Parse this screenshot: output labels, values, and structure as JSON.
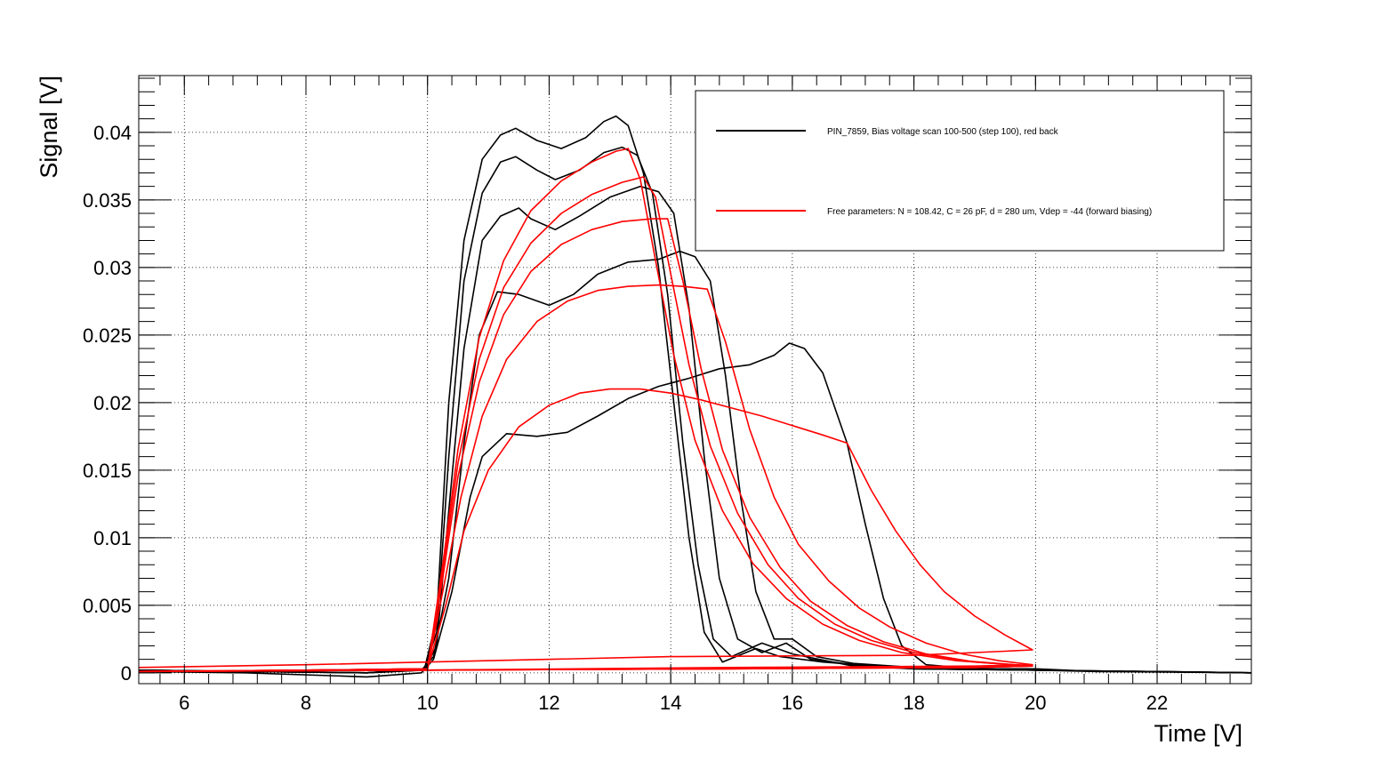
{
  "chart_data": {
    "type": "line",
    "title": "",
    "xlabel": "Time [V]",
    "ylabel": "Signal [V]",
    "xlim": [
      5.25,
      23.55
    ],
    "ylim": [
      -0.0008,
      0.0442
    ],
    "x_ticks": [
      6,
      8,
      10,
      12,
      14,
      16,
      18,
      20,
      22
    ],
    "y_ticks": [
      0,
      0.005,
      0.01,
      0.015,
      0.02,
      0.025,
      0.03,
      0.035,
      0.04
    ],
    "x_tick_labels": [
      "6",
      "8",
      "10",
      "12",
      "14",
      "16",
      "18",
      "20",
      "22"
    ],
    "y_tick_labels": [
      "0",
      "0.005",
      "0.01",
      "0.015",
      "0.02",
      "0.025",
      "0.03",
      "0.035",
      "0.04"
    ],
    "grid": true,
    "legend": {
      "placement": "top-right",
      "entries": [
        {
          "label": "PIN_7859, Bias voltage scan 100-500 (step 100), red back",
          "color": "#000000"
        },
        {
          "label": "Free parameters: N =  108.42, C = 26 pF, d = 280 um, Vdep = -44 (forward biasing)",
          "color": "#ff0000"
        }
      ]
    },
    "series": [
      {
        "group": "measured",
        "color": "#000000",
        "points": [
          [
            5.25,
            0.0001
          ],
          [
            7,
            0.0
          ],
          [
            9,
            -0.0003
          ],
          [
            9.9,
            0.0
          ],
          [
            10.1,
            0.001
          ],
          [
            10.4,
            0.006
          ],
          [
            10.7,
            0.013
          ],
          [
            10.9,
            0.016
          ],
          [
            11.3,
            0.0177
          ],
          [
            11.8,
            0.0175
          ],
          [
            12.3,
            0.0178
          ],
          [
            12.8,
            0.019
          ],
          [
            13.3,
            0.0203
          ],
          [
            13.8,
            0.0212
          ],
          [
            14.3,
            0.0218
          ],
          [
            14.8,
            0.0225
          ],
          [
            15.3,
            0.0228
          ],
          [
            15.7,
            0.0235
          ],
          [
            15.95,
            0.0244
          ],
          [
            16.2,
            0.024
          ],
          [
            16.5,
            0.0222
          ],
          [
            16.9,
            0.017
          ],
          [
            17.2,
            0.011
          ],
          [
            17.5,
            0.0055
          ],
          [
            17.8,
            0.002
          ],
          [
            18.2,
            0.0006
          ],
          [
            19,
            0.0003
          ],
          [
            20,
            0.0003
          ],
          [
            21,
            0.0001
          ],
          [
            22,
            0.0001
          ],
          [
            23.55,
            0.0
          ]
        ]
      },
      {
        "group": "measured",
        "color": "#000000",
        "points": [
          [
            5.25,
            0.0002
          ],
          [
            7,
            0.0001
          ],
          [
            9,
            0.0
          ],
          [
            9.9,
            0.0002
          ],
          [
            10.1,
            0.0012
          ],
          [
            10.35,
            0.007
          ],
          [
            10.6,
            0.017
          ],
          [
            10.85,
            0.025
          ],
          [
            11.15,
            0.0282
          ],
          [
            11.5,
            0.028
          ],
          [
            12.0,
            0.0272
          ],
          [
            12.4,
            0.028
          ],
          [
            12.8,
            0.0295
          ],
          [
            13.3,
            0.0304
          ],
          [
            13.8,
            0.0306
          ],
          [
            14.15,
            0.0312
          ],
          [
            14.4,
            0.0308
          ],
          [
            14.65,
            0.029
          ],
          [
            14.9,
            0.022
          ],
          [
            15.15,
            0.013
          ],
          [
            15.4,
            0.006
          ],
          [
            15.7,
            0.0025
          ],
          [
            16.0,
            0.0025
          ],
          [
            16.4,
            0.0012
          ],
          [
            17,
            0.0007
          ],
          [
            18,
            0.0004
          ],
          [
            19,
            0.0003
          ],
          [
            20,
            0.0002
          ],
          [
            21,
            0.0001
          ],
          [
            23.55,
            0.0
          ]
        ]
      },
      {
        "group": "measured",
        "color": "#000000",
        "points": [
          [
            5.25,
            0.0002
          ],
          [
            7,
            0.0001
          ],
          [
            9,
            0.0
          ],
          [
            9.95,
            0.0002
          ],
          [
            10.15,
            0.002
          ],
          [
            10.35,
            0.012
          ],
          [
            10.6,
            0.024
          ],
          [
            10.9,
            0.032
          ],
          [
            11.2,
            0.0338
          ],
          [
            11.5,
            0.0344
          ],
          [
            11.7,
            0.0336
          ],
          [
            12.1,
            0.0328
          ],
          [
            12.5,
            0.0338
          ],
          [
            13.0,
            0.0352
          ],
          [
            13.5,
            0.036
          ],
          [
            13.8,
            0.0356
          ],
          [
            14.05,
            0.034
          ],
          [
            14.3,
            0.027
          ],
          [
            14.55,
            0.016
          ],
          [
            14.8,
            0.007
          ],
          [
            15.1,
            0.0025
          ],
          [
            15.5,
            0.0015
          ],
          [
            15.9,
            0.0022
          ],
          [
            16.3,
            0.001
          ],
          [
            17,
            0.0006
          ],
          [
            18,
            0.0003
          ],
          [
            20,
            0.0002
          ],
          [
            23.55,
            0.0
          ]
        ]
      },
      {
        "group": "measured",
        "color": "#000000",
        "points": [
          [
            5.25,
            0.0002
          ],
          [
            7,
            0.0001
          ],
          [
            9,
            0.0
          ],
          [
            9.95,
            0.0003
          ],
          [
            10.15,
            0.003
          ],
          [
            10.35,
            0.016
          ],
          [
            10.6,
            0.029
          ],
          [
            10.9,
            0.0355
          ],
          [
            11.2,
            0.0378
          ],
          [
            11.45,
            0.0382
          ],
          [
            11.8,
            0.0372
          ],
          [
            12.1,
            0.0365
          ],
          [
            12.5,
            0.0372
          ],
          [
            12.9,
            0.0385
          ],
          [
            13.2,
            0.0389
          ],
          [
            13.45,
            0.0383
          ],
          [
            13.7,
            0.0355
          ],
          [
            13.95,
            0.028
          ],
          [
            14.2,
            0.017
          ],
          [
            14.45,
            0.008
          ],
          [
            14.7,
            0.0025
          ],
          [
            15.0,
            0.0012
          ],
          [
            15.5,
            0.0022
          ],
          [
            16.0,
            0.0014
          ],
          [
            17,
            0.0005
          ],
          [
            18,
            0.0003
          ],
          [
            20,
            0.0002
          ],
          [
            23.55,
            0.0
          ]
        ]
      },
      {
        "group": "measured",
        "color": "#000000",
        "points": [
          [
            5.25,
            0.0002
          ],
          [
            7,
            0.0001
          ],
          [
            9,
            0.0
          ],
          [
            9.95,
            0.0003
          ],
          [
            10.15,
            0.004
          ],
          [
            10.35,
            0.02
          ],
          [
            10.6,
            0.032
          ],
          [
            10.9,
            0.038
          ],
          [
            11.2,
            0.0398
          ],
          [
            11.45,
            0.0403
          ],
          [
            11.8,
            0.0394
          ],
          [
            12.2,
            0.0388
          ],
          [
            12.6,
            0.0396
          ],
          [
            12.9,
            0.0408
          ],
          [
            13.1,
            0.0412
          ],
          [
            13.3,
            0.0405
          ],
          [
            13.55,
            0.037
          ],
          [
            13.8,
            0.03
          ],
          [
            14.05,
            0.02
          ],
          [
            14.3,
            0.01
          ],
          [
            14.55,
            0.003
          ],
          [
            14.85,
            0.0008
          ],
          [
            15.4,
            0.0018
          ],
          [
            15.8,
            0.0012
          ],
          [
            16.5,
            0.0008
          ],
          [
            18,
            0.0003
          ],
          [
            20,
            0.0002
          ],
          [
            23.55,
            0.0
          ]
        ]
      },
      {
        "group": "model",
        "color": "#ff0000",
        "points": [
          [
            5.25,
            0.0001
          ],
          [
            8,
            0.0002
          ],
          [
            10.0,
            0.0003
          ],
          [
            10.3,
            0.005
          ],
          [
            10.6,
            0.0105
          ],
          [
            11.0,
            0.015
          ],
          [
            11.5,
            0.0182
          ],
          [
            12.0,
            0.0198
          ],
          [
            12.5,
            0.0207
          ],
          [
            13.0,
            0.021
          ],
          [
            13.5,
            0.021
          ],
          [
            14.0,
            0.0207
          ],
          [
            14.5,
            0.0202
          ],
          [
            15.0,
            0.0196
          ],
          [
            15.5,
            0.019
          ],
          [
            16.0,
            0.0183
          ],
          [
            16.5,
            0.0176
          ],
          [
            16.9,
            0.017
          ],
          [
            17.3,
            0.0135
          ],
          [
            17.7,
            0.0105
          ],
          [
            18.1,
            0.008
          ],
          [
            18.5,
            0.006
          ],
          [
            19.0,
            0.0042
          ],
          [
            19.5,
            0.0028
          ],
          [
            19.95,
            0.0017
          ],
          [
            19.5,
            0.0016
          ],
          [
            18,
            0.0013
          ],
          [
            14,
            0.0012
          ],
          [
            10,
            0.0008
          ],
          [
            8,
            0.0006
          ],
          [
            5.25,
            0.0004
          ]
        ]
      },
      {
        "group": "model",
        "color": "#ff0000",
        "points": [
          [
            5.25,
            0.0001
          ],
          [
            8,
            0.0002
          ],
          [
            10.0,
            0.0003
          ],
          [
            10.25,
            0.006
          ],
          [
            10.55,
            0.013
          ],
          [
            10.9,
            0.019
          ],
          [
            11.3,
            0.0232
          ],
          [
            11.8,
            0.026
          ],
          [
            12.3,
            0.0275
          ],
          [
            12.8,
            0.0283
          ],
          [
            13.3,
            0.0286
          ],
          [
            13.8,
            0.0287
          ],
          [
            14.2,
            0.0286
          ],
          [
            14.6,
            0.0284
          ],
          [
            14.9,
            0.0245
          ],
          [
            15.3,
            0.018
          ],
          [
            15.7,
            0.013
          ],
          [
            16.1,
            0.0095
          ],
          [
            16.6,
            0.0068
          ],
          [
            17.1,
            0.0048
          ],
          [
            17.6,
            0.0034
          ],
          [
            18.2,
            0.0022
          ],
          [
            18.8,
            0.0014
          ],
          [
            19.4,
            0.0009
          ],
          [
            19.95,
            0.0006
          ],
          [
            19,
            0.0005
          ],
          [
            15,
            0.0004
          ],
          [
            10,
            0.0002
          ],
          [
            5.25,
            0.0001
          ]
        ]
      },
      {
        "group": "model",
        "color": "#ff0000",
        "points": [
          [
            5.25,
            0.0001
          ],
          [
            8,
            0.0002
          ],
          [
            10.0,
            0.0003
          ],
          [
            10.25,
            0.007
          ],
          [
            10.5,
            0.0145
          ],
          [
            10.85,
            0.0215
          ],
          [
            11.25,
            0.0265
          ],
          [
            11.7,
            0.0297
          ],
          [
            12.2,
            0.0317
          ],
          [
            12.7,
            0.0328
          ],
          [
            13.2,
            0.0334
          ],
          [
            13.7,
            0.0336
          ],
          [
            13.95,
            0.0336
          ],
          [
            14.2,
            0.029
          ],
          [
            14.5,
            0.0225
          ],
          [
            14.85,
            0.0165
          ],
          [
            15.3,
            0.0115
          ],
          [
            15.8,
            0.0078
          ],
          [
            16.3,
            0.0053
          ],
          [
            16.9,
            0.0035
          ],
          [
            17.5,
            0.0023
          ],
          [
            18.2,
            0.0014
          ],
          [
            19.0,
            0.0008
          ],
          [
            19.95,
            0.0005
          ],
          [
            19,
            0.0004
          ],
          [
            15,
            0.0003
          ],
          [
            10,
            0.0002
          ],
          [
            5.25,
            0.0001
          ]
        ]
      },
      {
        "group": "model",
        "color": "#ff0000",
        "points": [
          [
            5.25,
            0.0001
          ],
          [
            8,
            0.0002
          ],
          [
            10.0,
            0.0003
          ],
          [
            10.25,
            0.0075
          ],
          [
            10.5,
            0.0155
          ],
          [
            10.85,
            0.0232
          ],
          [
            11.25,
            0.0285
          ],
          [
            11.7,
            0.0318
          ],
          [
            12.2,
            0.034
          ],
          [
            12.7,
            0.0354
          ],
          [
            13.2,
            0.0363
          ],
          [
            13.55,
            0.0367
          ],
          [
            13.75,
            0.0352
          ],
          [
            14.0,
            0.0295
          ],
          [
            14.3,
            0.0228
          ],
          [
            14.65,
            0.0168
          ],
          [
            15.1,
            0.0118
          ],
          [
            15.6,
            0.008
          ],
          [
            16.1,
            0.0055
          ],
          [
            16.7,
            0.0036
          ],
          [
            17.3,
            0.0024
          ],
          [
            18.0,
            0.0015
          ],
          [
            18.8,
            0.0009
          ],
          [
            19.95,
            0.0005
          ],
          [
            19,
            0.0004
          ],
          [
            15,
            0.0003
          ],
          [
            10,
            0.0002
          ],
          [
            5.25,
            0.0001
          ]
        ]
      },
      {
        "group": "model",
        "color": "#ff0000",
        "points": [
          [
            5.25,
            0.0001
          ],
          [
            8,
            0.0002
          ],
          [
            10.0,
            0.0003
          ],
          [
            10.25,
            0.008
          ],
          [
            10.5,
            0.0165
          ],
          [
            10.85,
            0.0248
          ],
          [
            11.25,
            0.0305
          ],
          [
            11.7,
            0.0342
          ],
          [
            12.2,
            0.0364
          ],
          [
            12.7,
            0.0378
          ],
          [
            13.1,
            0.0386
          ],
          [
            13.3,
            0.0388
          ],
          [
            13.5,
            0.0365
          ],
          [
            13.75,
            0.0305
          ],
          [
            14.05,
            0.0235
          ],
          [
            14.4,
            0.0172
          ],
          [
            14.85,
            0.012
          ],
          [
            15.35,
            0.0081
          ],
          [
            15.9,
            0.0055
          ],
          [
            16.5,
            0.0036
          ],
          [
            17.1,
            0.0024
          ],
          [
            17.8,
            0.0015
          ],
          [
            18.7,
            0.0009
          ],
          [
            19.95,
            0.0005
          ],
          [
            19,
            0.0004
          ],
          [
            15,
            0.0003
          ],
          [
            10,
            0.0002
          ],
          [
            5.25,
            0.0001
          ]
        ]
      }
    ]
  }
}
